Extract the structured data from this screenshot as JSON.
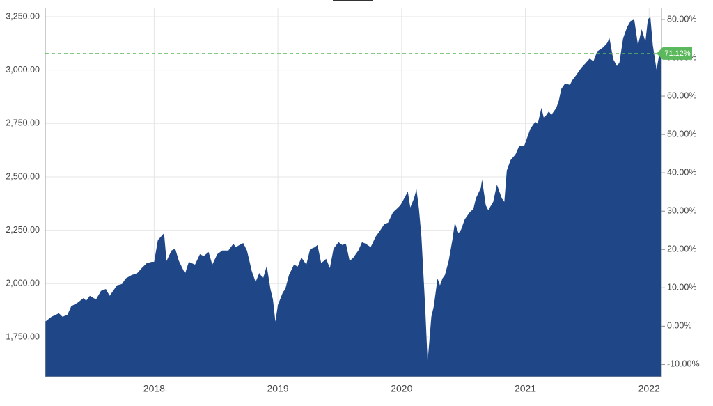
{
  "chart_data": {
    "type": "area",
    "color": "#1f4788",
    "grid": true,
    "x": [
      2017.12,
      2017.17,
      2017.23,
      2017.26,
      2017.3,
      2017.33,
      2017.38,
      2017.43,
      2017.45,
      2017.48,
      2017.53,
      2017.57,
      2017.61,
      2017.64,
      2017.7,
      2017.74,
      2017.77,
      2017.82,
      2017.86,
      2017.9,
      2017.94,
      2017.98,
      2018.0,
      2018.03,
      2018.08,
      2018.1,
      2018.14,
      2018.17,
      2018.2,
      2018.25,
      2018.28,
      2018.33,
      2018.37,
      2018.4,
      2018.44,
      2018.47,
      2018.51,
      2018.55,
      2018.6,
      2018.64,
      2018.66,
      2018.69,
      2018.72,
      2018.75,
      2018.79,
      2018.82,
      2018.85,
      2018.88,
      2018.91,
      2018.94,
      2018.96,
      2018.98,
      2019.0,
      2019.04,
      2019.06,
      2019.09,
      2019.13,
      2019.16,
      2019.19,
      2019.23,
      2019.26,
      2019.3,
      2019.32,
      2019.35,
      2019.39,
      2019.42,
      2019.45,
      2019.49,
      2019.52,
      2019.55,
      2019.58,
      2019.61,
      2019.65,
      2019.68,
      2019.71,
      2019.75,
      2019.79,
      2019.83,
      2019.86,
      2019.89,
      2019.93,
      2019.96,
      2019.99,
      2020.03,
      2020.05,
      2020.07,
      2020.1,
      2020.12,
      2020.14,
      2020.16,
      2020.19,
      2020.21,
      2020.24,
      2020.26,
      2020.29,
      2020.31,
      2020.33,
      2020.35,
      2020.38,
      2020.41,
      2020.43,
      2020.46,
      2020.48,
      2020.51,
      2020.55,
      2020.58,
      2020.6,
      2020.64,
      2020.65,
      2020.68,
      2020.7,
      2020.74,
      2020.77,
      2020.81,
      2020.83,
      2020.85,
      2020.88,
      2020.92,
      2020.95,
      2020.99,
      2021.01,
      2021.04,
      2021.08,
      2021.1,
      2021.13,
      2021.15,
      2021.19,
      2021.21,
      2021.25,
      2021.27,
      2021.29,
      2021.32,
      2021.36,
      2021.38,
      2021.41,
      2021.45,
      2021.48,
      2021.52,
      2021.55,
      2021.58,
      2021.63,
      2021.66,
      2021.68,
      2021.71,
      2021.74,
      2021.76,
      2021.79,
      2021.82,
      2021.85,
      2021.88,
      2021.91,
      2021.94,
      2021.97,
      2021.99,
      2022.01,
      2022.03,
      2022.06,
      2022.08,
      2022.1
    ],
    "values": [
      1822,
      1845,
      1861,
      1845,
      1855,
      1894,
      1910,
      1933,
      1920,
      1943,
      1926,
      1966,
      1975,
      1943,
      1992,
      1998,
      2024,
      2041,
      2047,
      2073,
      2096,
      2102,
      2102,
      2204,
      2236,
      2106,
      2155,
      2164,
      2106,
      2047,
      2102,
      2089,
      2138,
      2129,
      2148,
      2089,
      2138,
      2155,
      2155,
      2187,
      2171,
      2181,
      2190,
      2155,
      2057,
      2008,
      2050,
      2024,
      2083,
      1975,
      1926,
      1822,
      1900,
      1959,
      1975,
      2041,
      2089,
      2080,
      2122,
      2089,
      2161,
      2171,
      2181,
      2096,
      2116,
      2073,
      2164,
      2194,
      2181,
      2187,
      2106,
      2122,
      2155,
      2194,
      2187,
      2171,
      2220,
      2252,
      2279,
      2285,
      2334,
      2350,
      2367,
      2409,
      2432,
      2357,
      2399,
      2442,
      2350,
      2220,
      1894,
      1633,
      1845,
      1894,
      2024,
      1992,
      2024,
      2041,
      2106,
      2204,
      2285,
      2236,
      2252,
      2301,
      2334,
      2350,
      2399,
      2448,
      2487,
      2367,
      2344,
      2383,
      2464,
      2399,
      2383,
      2530,
      2578,
      2605,
      2644,
      2644,
      2676,
      2725,
      2758,
      2748,
      2823,
      2774,
      2807,
      2790,
      2823,
      2856,
      2911,
      2937,
      2931,
      2953,
      2976,
      3009,
      3028,
      3054,
      3041,
      3087,
      3107,
      3126,
      3149,
      3051,
      3019,
      3035,
      3149,
      3198,
      3230,
      3237,
      3116,
      3191,
      3133,
      3237,
      3250,
      3116,
      3002,
      3067,
      3067
    ],
    "xlim": [
      2017.12,
      2022.1
    ],
    "xticks": [
      2018,
      2019,
      2020,
      2021,
      2022
    ],
    "ylim": [
      1564,
      3289
    ],
    "yticks": [
      {
        "value": 1750,
        "label": "1,750.00"
      },
      {
        "value": 2000,
        "label": "2,000.00"
      },
      {
        "value": 2250,
        "label": "2,250.00"
      },
      {
        "value": 2500,
        "label": "2,500.00"
      },
      {
        "value": 2750,
        "label": "2,750.00"
      },
      {
        "value": 3000,
        "label": "3,000.00"
      },
      {
        "value": 3250,
        "label": "3,250.00"
      }
    ],
    "y2lim": [
      -13.2,
      82.9
    ],
    "y2ticks": [
      {
        "value": -10,
        "label": "-10.00%"
      },
      {
        "value": 0,
        "label": "0.00%"
      },
      {
        "value": 10,
        "label": "10.00%"
      },
      {
        "value": 20,
        "label": "20.00%"
      },
      {
        "value": 30,
        "label": "30.00%"
      },
      {
        "value": 40,
        "label": "40.00%"
      },
      {
        "value": 50,
        "label": "50.00%"
      },
      {
        "value": 60,
        "label": "60.00%"
      },
      {
        "value": 70,
        "label": "70.00%"
      },
      {
        "value": 80,
        "label": "80.00%"
      }
    ],
    "reference_line": {
      "value": 71.12,
      "value_label": "71.12%",
      "axis": "y2",
      "color": "#5cb85c"
    }
  }
}
